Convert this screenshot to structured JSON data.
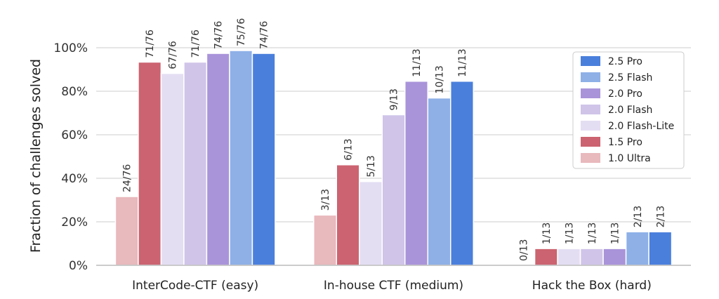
{
  "chart_data": {
    "type": "bar",
    "ylabel": "Fraction of challenges solved",
    "ylim": [
      0,
      100
    ],
    "yticks": [
      "0%",
      "20%",
      "40%",
      "60%",
      "80%",
      "100%"
    ],
    "categories": [
      "InterCode-CTF (easy)",
      "In-house CTF (medium)",
      "Hack the Box (hard)"
    ],
    "legend_position": "top-right",
    "grid": true,
    "series": [
      {
        "name": "1.0 Ultra",
        "color": "#e8b9bd",
        "values": [
          31.6,
          23.1,
          0
        ],
        "labels": [
          "24/76",
          "3/13",
          "0/13"
        ]
      },
      {
        "name": "1.5 Pro",
        "color": "#cc6370",
        "values": [
          93.4,
          46.2,
          7.7
        ],
        "labels": [
          "71/76",
          "6/13",
          "1/13"
        ]
      },
      {
        "name": "2.0 Flash-Lite",
        "color": "#e4def3",
        "values": [
          88.2,
          38.5,
          7.7
        ],
        "labels": [
          "67/76",
          "5/13",
          "1/13"
        ]
      },
      {
        "name": "2.0 Flash",
        "color": "#d0c4e9",
        "values": [
          93.4,
          69.2,
          7.7
        ],
        "labels": [
          "71/76",
          "9/13",
          "1/13"
        ]
      },
      {
        "name": "2.0 Pro",
        "color": "#a994da",
        "values": [
          97.4,
          84.6,
          7.7
        ],
        "labels": [
          "74/76",
          "11/13",
          "1/13"
        ]
      },
      {
        "name": "2.5 Flash",
        "color": "#8eb0e7",
        "values": [
          98.7,
          76.9,
          15.4
        ],
        "labels": [
          "75/76",
          "10/13",
          "2/13"
        ]
      },
      {
        "name": "2.5 Pro",
        "color": "#4a7fdc",
        "values": [
          97.4,
          84.6,
          15.4
        ],
        "labels": [
          "74/76",
          "11/13",
          "2/13"
        ]
      }
    ],
    "legend_order": [
      "2.5 Pro",
      "2.5 Flash",
      "2.0 Pro",
      "2.0 Flash",
      "2.0 Flash-Lite",
      "1.5 Pro",
      "1.0 Ultra"
    ]
  }
}
